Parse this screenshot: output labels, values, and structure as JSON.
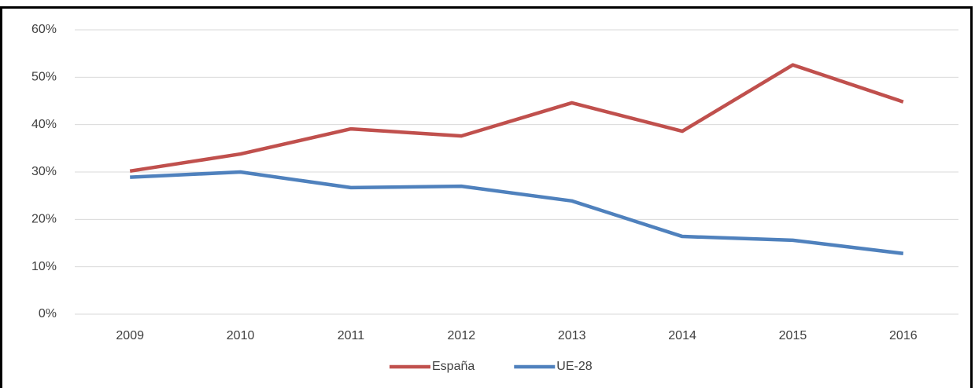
{
  "chart_data": {
    "type": "line",
    "categories": [
      "2009",
      "2010",
      "2011",
      "2012",
      "2013",
      "2014",
      "2015",
      "2016"
    ],
    "series": [
      {
        "name": "España",
        "color": "#c0504d",
        "values": [
          30.2,
          33.8,
          39.1,
          37.6,
          44.6,
          38.6,
          52.6,
          44.8
        ]
      },
      {
        "name": "UE-28",
        "color": "#4f81bd",
        "values": [
          28.9,
          30.0,
          26.7,
          27.0,
          23.9,
          16.4,
          15.6,
          12.8
        ]
      }
    ],
    "ylim": [
      0,
      60
    ],
    "yticks": [
      {
        "value": 0,
        "label": "0%"
      },
      {
        "value": 10,
        "label": "10%"
      },
      {
        "value": 20,
        "label": "20%"
      },
      {
        "value": 30,
        "label": "30%"
      },
      {
        "value": 40,
        "label": "40%"
      },
      {
        "value": 50,
        "label": "50%"
      },
      {
        "value": 60,
        "label": "60%"
      }
    ],
    "grid": true,
    "legend": "bottom"
  }
}
